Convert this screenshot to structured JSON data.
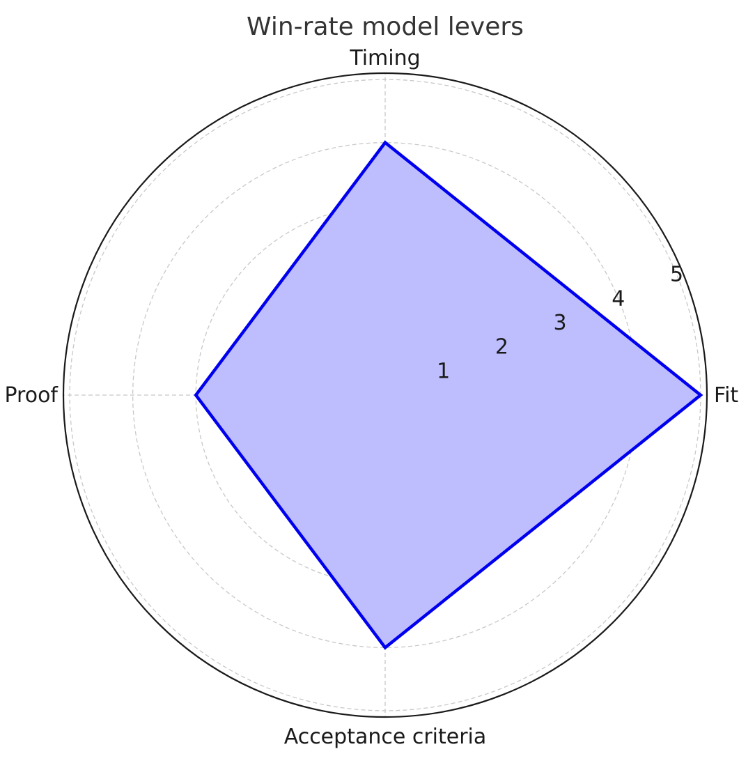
{
  "chart_data": {
    "type": "radar",
    "title": "Win-rate model levers",
    "categories": [
      "Fit",
      "Timing",
      "Proof",
      "Acceptance criteria"
    ],
    "series": [
      {
        "values": [
          5,
          4,
          3,
          4
        ],
        "color": "#0000ee",
        "fill": "#bebeff"
      }
    ],
    "radial_ticks": [
      "1",
      "2",
      "3",
      "4",
      "5"
    ],
    "rlim": [
      0,
      5.1
    ],
    "grid": true
  }
}
